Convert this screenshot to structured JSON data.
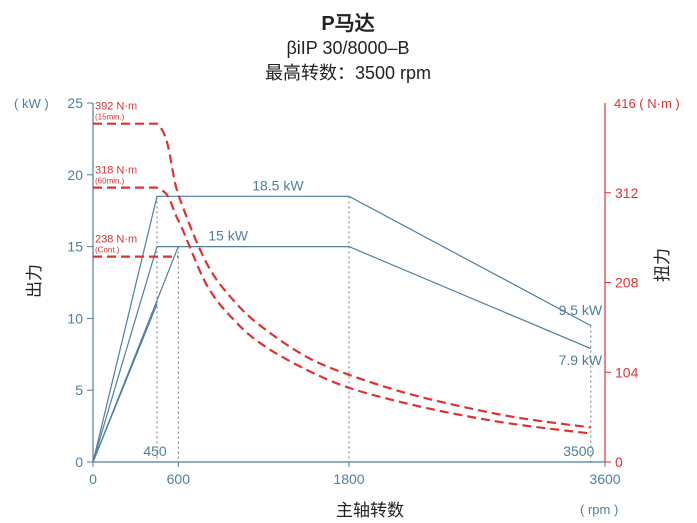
{
  "chart_data": {
    "type": "line",
    "title": "P马达",
    "subtitle": "βiIP 30/8000–B",
    "subtitle2": "最高转数：3500 rpm",
    "xlabel": "主轴转数",
    "xunit": "( rpm )",
    "ylabel_left": "出力",
    "yunit_left": "( kW )",
    "ylabel_right": "扭力",
    "yunit_right": "416 ( N·m )",
    "xlim": [
      0,
      3600
    ],
    "ylim_left": [
      0,
      25
    ],
    "ylim_right": [
      0,
      416
    ],
    "x_ticks": [
      {
        "value": 0,
        "label": "0"
      },
      {
        "value": 600,
        "label": "600"
      },
      {
        "value": 1800,
        "label": "1800"
      },
      {
        "value": 3600,
        "label": "3600"
      }
    ],
    "y_ticks_left": [
      {
        "value": 0,
        "label": "0"
      },
      {
        "value": 5,
        "label": "5"
      },
      {
        "value": 10,
        "label": "10"
      },
      {
        "value": 15,
        "label": "15"
      },
      {
        "value": 20,
        "label": "20"
      },
      {
        "value": 25,
        "label": "25"
      }
    ],
    "y_ticks_right": [
      {
        "value": 0,
        "label": "0"
      },
      {
        "value": 104,
        "label": "104"
      },
      {
        "value": 208,
        "label": "208"
      },
      {
        "value": 312,
        "label": "312"
      }
    ],
    "x_markers": [
      {
        "value": 450,
        "label": "450"
      },
      {
        "value": 3500,
        "label": "3500"
      }
    ],
    "power_series": [
      {
        "points": [
          [
            0,
            0
          ],
          [
            450,
            18.5
          ],
          [
            1800,
            18.5
          ],
          [
            3500,
            9.5
          ]
        ]
      },
      {
        "points": [
          [
            0,
            0
          ],
          [
            450,
            15
          ],
          [
            1800,
            15
          ],
          [
            3500,
            7.9
          ]
        ]
      },
      {
        "points": [
          [
            0,
            0
          ],
          [
            600,
            15
          ]
        ]
      },
      {
        "points": [
          [
            0,
            0
          ],
          [
            450,
            11
          ]
        ]
      }
    ],
    "power_labels": [
      {
        "text": "18.5 kW"
      },
      {
        "text": "15 kW"
      },
      {
        "text": "9.5 kW"
      },
      {
        "text": "7.9 kW"
      }
    ],
    "torque_series": [
      {
        "points": [
          [
            0,
            392
          ],
          [
            450,
            392
          ],
          [
            600,
            310
          ],
          [
            800,
            230
          ],
          [
            1000,
            185
          ],
          [
            1200,
            155
          ],
          [
            1500,
            122
          ],
          [
            1800,
            101
          ],
          [
            2200,
            80
          ],
          [
            2600,
            64
          ],
          [
            3000,
            51
          ],
          [
            3500,
            40
          ]
        ]
      },
      {
        "points": [
          [
            0,
            318
          ],
          [
            450,
            318
          ],
          [
            600,
            280
          ],
          [
            800,
            205
          ],
          [
            1000,
            163
          ],
          [
            1200,
            135
          ],
          [
            1500,
            107
          ],
          [
            1800,
            86
          ],
          [
            2200,
            68
          ],
          [
            2600,
            54
          ],
          [
            3000,
            43
          ],
          [
            3500,
            33
          ]
        ]
      },
      {
        "points": [
          [
            0,
            238
          ],
          [
            600,
            238
          ]
        ]
      }
    ],
    "torque_labels": [
      {
        "text": "392 N·m",
        "note": "(15min.)"
      },
      {
        "text": "318 N·m",
        "note": "(60min.)"
      },
      {
        "text": "238 N·m",
        "note": "(Cont.)"
      }
    ],
    "colors": {
      "power": "#4f7f99",
      "torque": "#e03131",
      "guide": "#777777"
    }
  }
}
